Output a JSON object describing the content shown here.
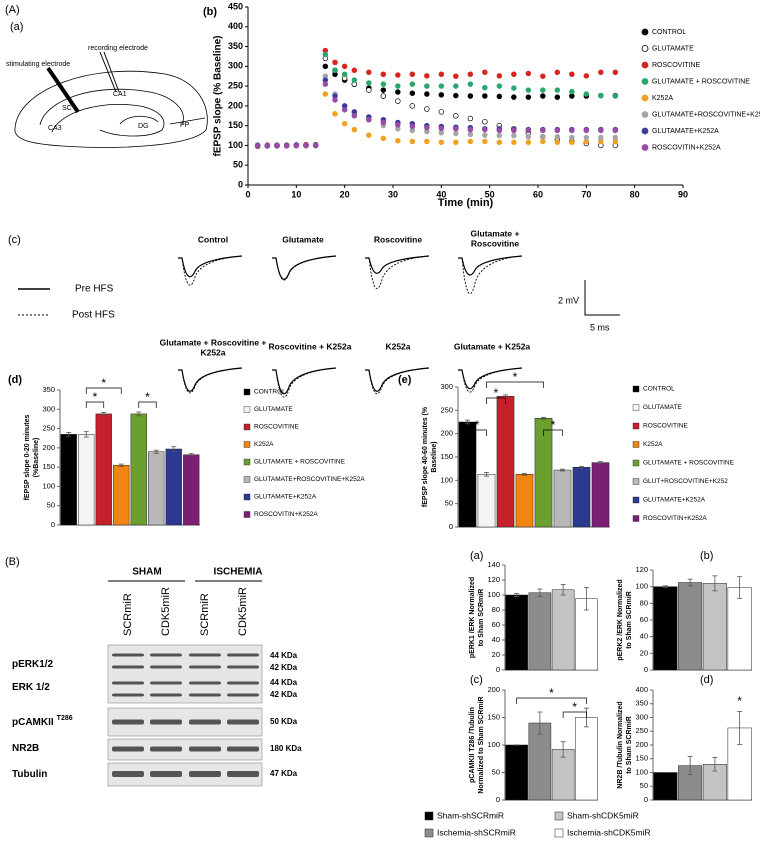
{
  "panel_labels": {
    "A": "(A)",
    "Aa": "(a)",
    "Ab": "(b)",
    "Ac": "(c)",
    "Ad": "(d)",
    "Ae": "(e)",
    "B": "(B)",
    "Ba": "(a)",
    "Bb": "(b)",
    "Bc": "(c)",
    "Bd": "(d)"
  },
  "diagram": {
    "recording": "recording electrode",
    "stimulating": "stimulating electrode",
    "regions": [
      "SC",
      "CA1",
      "CA3",
      "DG",
      "PP"
    ]
  },
  "traces": {
    "conditions": [
      [
        "Control"
      ],
      [
        "Glutamate"
      ],
      [
        "Roscovitine"
      ],
      [
        "Glutamate +",
        "Roscovitine"
      ],
      [
        "Glutamate + Roscovitine +",
        "K252a"
      ],
      [
        "Roscovitine + K252a"
      ],
      [
        "K252a"
      ],
      [
        "Glutamate + K252a"
      ]
    ],
    "pre": "Pre HFS",
    "post": "Post HFS",
    "scale_y": "2 mV",
    "scale_x": "5 ms"
  },
  "blot": {
    "groups": [
      "SHAM",
      "ISCHEMIA"
    ],
    "lanes": [
      "SCRmiR",
      "CDK5miR",
      "SCRmiR",
      "CDK5miR"
    ],
    "rows": [
      {
        "label": "pERK1/2"
      },
      {
        "label": "ERK 1/2"
      },
      {
        "label": "pCAMKII",
        "sup": "T286"
      },
      {
        "label": "NR2B"
      },
      {
        "label": "Tubulin"
      }
    ],
    "sizes": [
      "44 KDa",
      "42 KDa",
      "44 KDa",
      "42 KDa",
      "50 KDa",
      "180 KDa",
      "47 KDa"
    ]
  },
  "shared_legend": [
    {
      "name": "Sham-shSCRmiR",
      "color": "#000000"
    },
    {
      "name": "Sham-shCDK5miR",
      "color": "#c4c4c4"
    },
    {
      "name": "Ischemia-shSCRmiR",
      "color": "#8c8c8c"
    },
    {
      "name": "Ischemia-shCDK5miR",
      "color": "#ffffff"
    }
  ],
  "chart_data": [
    {
      "type": "scatter",
      "ylabel": "fEPSP slope (% Baseline)",
      "xlabel": "Time (min)",
      "x": [
        2,
        4,
        6,
        8,
        10,
        12,
        14,
        16,
        18,
        20,
        22,
        25,
        28,
        31,
        34,
        37,
        40,
        43,
        46,
        49,
        52,
        55,
        58,
        61,
        64,
        67,
        70,
        73,
        76
      ],
      "xlim": [
        0,
        90
      ],
      "xticks": [
        0,
        10,
        20,
        30,
        40,
        50,
        60,
        70,
        80,
        90
      ],
      "ylim": [
        0,
        450
      ],
      "yticks": [
        0,
        50,
        100,
        150,
        200,
        250,
        300,
        350,
        400,
        450
      ],
      "series": [
        {
          "name": "CONTROL",
          "color": "#000000",
          "values": [
            100,
            99,
            101,
            100,
            100,
            101,
            102,
            300,
            280,
            265,
            255,
            245,
            240,
            235,
            232,
            230,
            228,
            226,
            225,
            225,
            224,
            222,
            222,
            225,
            222,
            225,
            225,
            226,
            226
          ]
        },
        {
          "name": "GLUTAMATE",
          "color": "#ffffff",
          "edgecolor": "#000000",
          "values": [
            98,
            100,
            99,
            100,
            101,
            100,
            100,
            320,
            290,
            270,
            255,
            240,
            225,
            212,
            200,
            192,
            185,
            175,
            168,
            160,
            150,
            142,
            132,
            122,
            115,
            110,
            105,
            100,
            100
          ]
        },
        {
          "name": "ROSCOVITINE",
          "color": "#d7261e",
          "values": [
            100,
            101,
            100,
            99,
            100,
            102,
            101,
            340,
            310,
            300,
            290,
            285,
            280,
            278,
            280,
            276,
            280,
            275,
            280,
            285,
            276,
            280,
            282,
            275,
            285,
            280,
            276,
            285,
            285
          ]
        },
        {
          "name": "GLUTAMATE + ROSCOVITINE",
          "color": "#27a86d",
          "values": [
            101,
            100,
            100,
            101,
            99,
            100,
            100,
            330,
            290,
            280,
            265,
            258,
            255,
            250,
            255,
            250,
            250,
            250,
            255,
            246,
            250,
            245,
            240,
            240,
            240,
            236,
            230,
            226,
            225
          ]
        },
        {
          "name": "K252A",
          "color": "#f2a01f",
          "values": [
            99,
            100,
            100,
            100,
            100,
            99,
            100,
            230,
            180,
            155,
            140,
            126,
            118,
            112,
            110,
            110,
            108,
            108,
            110,
            110,
            108,
            108,
            108,
            110,
            108,
            108,
            110,
            110,
            110
          ]
        },
        {
          "name": "GLUTAMATE+ROSCOVITINE+K252A",
          "color": "#a6a6a6",
          "values": [
            100,
            100,
            101,
            100,
            100,
            100,
            101,
            275,
            230,
            200,
            180,
            165,
            150,
            142,
            138,
            135,
            132,
            130,
            128,
            126,
            125,
            125,
            122,
            122,
            122,
            120,
            120,
            120,
            120
          ]
        },
        {
          "name": "GLUTAMATE+K252A",
          "color": "#3c3c9c",
          "values": [
            100,
            99,
            100,
            100,
            101,
            100,
            100,
            265,
            225,
            200,
            185,
            172,
            165,
            158,
            155,
            150,
            148,
            146,
            145,
            142,
            142,
            140,
            140,
            140,
            140,
            140,
            140,
            140,
            140
          ]
        },
        {
          "name": "ROSCOVITIN+K252A",
          "color": "#9a4aa8",
          "values": [
            100,
            100,
            100,
            99,
            100,
            100,
            100,
            255,
            215,
            190,
            175,
            165,
            158,
            152,
            148,
            145,
            143,
            142,
            140,
            140,
            138,
            138,
            138,
            138,
            138,
            138,
            138,
            138,
            138
          ]
        }
      ]
    },
    {
      "type": "bar",
      "ylabel": [
        "fEPSP slope 0-20 minutes",
        "(%Baseline)"
      ],
      "ylim": [
        0,
        350
      ],
      "yticks": [
        0,
        50,
        100,
        150,
        200,
        250,
        300,
        350
      ],
      "categories": [
        "CONTROL",
        "GLUTAMATE",
        "ROSCOVITINE",
        "K252A",
        "GLUTAMATE + ROSCOVITINE",
        "GLUTAMATE+ROSCOVITINE+K252A",
        "GLUTAMATE+K252A",
        "ROSCOVITIN+K252A"
      ],
      "colors": [
        "#000000",
        "#f4f4f4",
        "#c4212b",
        "#f08512",
        "#6ba02f",
        "#b8b8b8",
        "#2b3990",
        "#7b1f75"
      ],
      "values": [
        235,
        235,
        288,
        155,
        288,
        190,
        197,
        182
      ],
      "errors": [
        5,
        7,
        4,
        3,
        5,
        4,
        6,
        3
      ],
      "annotations": [
        "*",
        "*",
        "*"
      ]
    },
    {
      "type": "bar",
      "ylabel": [
        "fEPSP slope 40-60 minutes (%",
        "Baseline)"
      ],
      "ylim": [
        0,
        300
      ],
      "yticks": [
        0,
        50,
        100,
        150,
        200,
        250,
        300
      ],
      "categories": [
        "CONTROL",
        "GLUTAMATE",
        "ROSCOVITINE",
        "K252A",
        "GLUTAMATE + ROSCOVITINE",
        "GLUT+ROSCOVITINE+K252",
        "GLUTAMATE+K252A",
        "ROSCOVITIN+K252A"
      ],
      "colors": [
        "#000000",
        "#f4f4f4",
        "#c4212b",
        "#f08512",
        "#6ba02f",
        "#b8b8b8",
        "#2b3990",
        "#7b1f75"
      ],
      "values": [
        225,
        113,
        280,
        113,
        233,
        122,
        128,
        138
      ],
      "errors": [
        4,
        4,
        3,
        2,
        2,
        2,
        2,
        2
      ],
      "annotations": [
        "*",
        "*",
        "*",
        "*"
      ]
    },
    {
      "type": "bar",
      "ylabel": [
        "pERK1 /ERK  Normalized",
        "to Sham SCRmiR"
      ],
      "ylim": [
        0,
        140
      ],
      "yticks": [
        0,
        20,
        40,
        60,
        80,
        100,
        120,
        140
      ],
      "colors": [
        "#000000",
        "#8c8c8c",
        "#c4c4c4",
        "#ffffff"
      ],
      "values": [
        100,
        103,
        107,
        95
      ],
      "errors": [
        2,
        5,
        7,
        15
      ]
    },
    {
      "type": "bar",
      "ylabel": [
        "pERK2 /ERK  Normalized",
        "to Sham SCRmiR"
      ],
      "ylim": [
        0,
        120
      ],
      "yticks": [
        0,
        20,
        40,
        60,
        80,
        100,
        120
      ],
      "colors": [
        "#000000",
        "#8c8c8c",
        "#c4c4c4",
        "#ffffff"
      ],
      "values": [
        100,
        105,
        104,
        99
      ],
      "errors": [
        1,
        4,
        9,
        13
      ]
    },
    {
      "type": "bar",
      "ylabel": [
        "pCAMKII T286 /Tubulin",
        "Normalized to Sham SCRmiR"
      ],
      "ylim": [
        0,
        200
      ],
      "yticks": [
        0,
        50,
        100,
        150,
        200
      ],
      "colors": [
        "#000000",
        "#8c8c8c",
        "#c4c4c4",
        "#ffffff"
      ],
      "values": [
        100,
        140,
        92,
        150
      ],
      "errors": [
        0,
        20,
        14,
        17
      ],
      "annotations": [
        "*",
        "*"
      ]
    },
    {
      "type": "bar",
      "ylabel": [
        "NR2B /Tubulin Normalized",
        "to Sham SCRmiR"
      ],
      "ylim": [
        0,
        400
      ],
      "yticks": [
        0,
        50,
        100,
        150,
        200,
        250,
        300,
        350,
        400
      ],
      "colors": [
        "#000000",
        "#8c8c8c",
        "#c4c4c4",
        "#ffffff"
      ],
      "values": [
        100,
        125,
        130,
        262
      ],
      "errors": [
        0,
        33,
        25,
        60
      ],
      "annotations": [
        "*"
      ]
    }
  ]
}
